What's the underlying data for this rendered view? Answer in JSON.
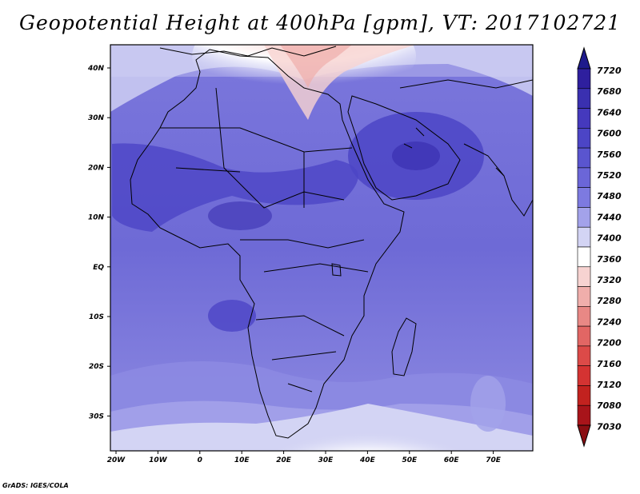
{
  "title": "Geopotential Height at 400hPa [gpm], VT: 2017102721",
  "credit": "GrADS: IGES/COLA",
  "map": {
    "lon_ticks": [
      "20W",
      "10W",
      "0",
      "10E",
      "20E",
      "30E",
      "40E",
      "50E",
      "60E",
      "70E"
    ],
    "lat_ticks": [
      "40N",
      "30N",
      "20N",
      "10N",
      "EQ",
      "10S",
      "20S",
      "30S"
    ]
  },
  "colorbar": {
    "levels": [
      "7720",
      "7680",
      "7640",
      "7600",
      "7560",
      "7520",
      "7480",
      "7440",
      "7400",
      "7360",
      "7320",
      "7280",
      "7240",
      "7200",
      "7160",
      "7120",
      "7080",
      "7030"
    ],
    "colors": [
      "#2e1f9e",
      "#3a30b0",
      "#4539bd",
      "#4c45c6",
      "#5a55cf",
      "#6b66d8",
      "#7d7ae0",
      "#a3a2ea",
      "#d3d4f4",
      "#ffffff",
      "#f7d3d1",
      "#f0aeab",
      "#e88885",
      "#e26664",
      "#dc4a48",
      "#d43332",
      "#c2221f",
      "#a8141a"
    ],
    "arrow_top": "#1e1a8c",
    "arrow_bottom": "#8a0e12"
  }
}
